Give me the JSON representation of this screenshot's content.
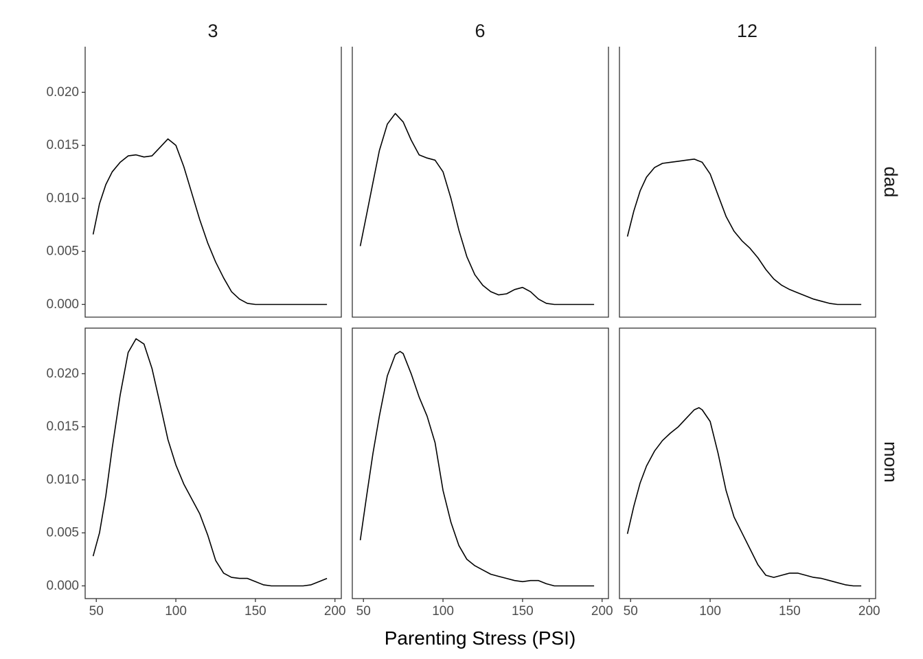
{
  "chart_data": {
    "type": "line",
    "xlabel": "Parenting Stress (PSI)",
    "ylabel": "",
    "xlim": [
      43,
      204
    ],
    "ylim": [
      -0.0012,
      0.0243
    ],
    "x_ticks": [
      50,
      100,
      150,
      200
    ],
    "y_ticks": [
      0.0,
      0.005,
      0.01,
      0.015,
      0.02
    ],
    "x_tick_labels": [
      "50",
      "100",
      "150",
      "200"
    ],
    "y_tick_labels": [
      "0.000",
      "0.005",
      "0.010",
      "0.015",
      "0.020"
    ],
    "columns": [
      "3",
      "6",
      "12"
    ],
    "rows": [
      "dad",
      "mom"
    ],
    "grid": false,
    "panels": [
      {
        "row": "dad",
        "col": "3",
        "points": [
          [
            48,
            0.0066
          ],
          [
            52,
            0.0095
          ],
          [
            56,
            0.0113
          ],
          [
            60,
            0.0125
          ],
          [
            65,
            0.0134
          ],
          [
            70,
            0.014
          ],
          [
            75,
            0.0141
          ],
          [
            80,
            0.0139
          ],
          [
            85,
            0.014
          ],
          [
            90,
            0.0148
          ],
          [
            95,
            0.0156
          ],
          [
            100,
            0.015
          ],
          [
            105,
            0.013
          ],
          [
            110,
            0.0105
          ],
          [
            115,
            0.008
          ],
          [
            120,
            0.0058
          ],
          [
            125,
            0.004
          ],
          [
            130,
            0.0025
          ],
          [
            135,
            0.0012
          ],
          [
            140,
            0.0005
          ],
          [
            145,
            0.0001
          ],
          [
            150,
            0.0
          ],
          [
            160,
            0.0
          ],
          [
            170,
            0.0
          ],
          [
            180,
            0.0
          ],
          [
            190,
            0.0
          ],
          [
            195,
            0.0
          ]
        ]
      },
      {
        "row": "dad",
        "col": "6",
        "points": [
          [
            48,
            0.0055
          ],
          [
            52,
            0.0085
          ],
          [
            56,
            0.0115
          ],
          [
            60,
            0.0145
          ],
          [
            65,
            0.017
          ],
          [
            70,
            0.018
          ],
          [
            75,
            0.0172
          ],
          [
            80,
            0.0155
          ],
          [
            85,
            0.0141
          ],
          [
            90,
            0.0138
          ],
          [
            95,
            0.0136
          ],
          [
            100,
            0.0125
          ],
          [
            105,
            0.01
          ],
          [
            110,
            0.007
          ],
          [
            115,
            0.0045
          ],
          [
            120,
            0.0028
          ],
          [
            125,
            0.0018
          ],
          [
            130,
            0.0012
          ],
          [
            135,
            0.0009
          ],
          [
            140,
            0.001
          ],
          [
            145,
            0.0014
          ],
          [
            150,
            0.0016
          ],
          [
            155,
            0.0012
          ],
          [
            160,
            0.0005
          ],
          [
            165,
            0.0001
          ],
          [
            170,
            0.0
          ],
          [
            180,
            0.0
          ],
          [
            195,
            0.0
          ]
        ]
      },
      {
        "row": "dad",
        "col": "12",
        "points": [
          [
            48,
            0.0064
          ],
          [
            52,
            0.0088
          ],
          [
            56,
            0.0107
          ],
          [
            60,
            0.012
          ],
          [
            65,
            0.0129
          ],
          [
            70,
            0.0133
          ],
          [
            75,
            0.0134
          ],
          [
            80,
            0.0135
          ],
          [
            85,
            0.0136
          ],
          [
            90,
            0.0137
          ],
          [
            95,
            0.0134
          ],
          [
            100,
            0.0123
          ],
          [
            105,
            0.0103
          ],
          [
            110,
            0.0083
          ],
          [
            115,
            0.0069
          ],
          [
            120,
            0.006
          ],
          [
            125,
            0.0053
          ],
          [
            130,
            0.0044
          ],
          [
            135,
            0.0033
          ],
          [
            140,
            0.0024
          ],
          [
            145,
            0.0018
          ],
          [
            150,
            0.0014
          ],
          [
            155,
            0.0011
          ],
          [
            160,
            0.0008
          ],
          [
            165,
            0.0005
          ],
          [
            170,
            0.0003
          ],
          [
            175,
            0.0001
          ],
          [
            180,
            0.0
          ],
          [
            185,
            0.0
          ],
          [
            195,
            0.0
          ]
        ]
      },
      {
        "row": "mom",
        "col": "3",
        "points": [
          [
            48,
            0.0028
          ],
          [
            52,
            0.005
          ],
          [
            56,
            0.0085
          ],
          [
            60,
            0.013
          ],
          [
            65,
            0.018
          ],
          [
            70,
            0.022
          ],
          [
            75,
            0.0233
          ],
          [
            80,
            0.0228
          ],
          [
            85,
            0.0205
          ],
          [
            90,
            0.0172
          ],
          [
            95,
            0.0138
          ],
          [
            100,
            0.0114
          ],
          [
            105,
            0.0096
          ],
          [
            110,
            0.0082
          ],
          [
            115,
            0.0068
          ],
          [
            120,
            0.0048
          ],
          [
            125,
            0.0024
          ],
          [
            130,
            0.0012
          ],
          [
            135,
            0.0008
          ],
          [
            140,
            0.0007
          ],
          [
            145,
            0.0007
          ],
          [
            150,
            0.0004
          ],
          [
            155,
            0.0001
          ],
          [
            160,
            0.0
          ],
          [
            170,
            0.0
          ],
          [
            180,
            0.0
          ],
          [
            185,
            0.0001
          ],
          [
            190,
            0.0004
          ],
          [
            195,
            0.0007
          ]
        ]
      },
      {
        "row": "mom",
        "col": "6",
        "points": [
          [
            48,
            0.0043
          ],
          [
            52,
            0.0085
          ],
          [
            56,
            0.0125
          ],
          [
            60,
            0.016
          ],
          [
            65,
            0.0198
          ],
          [
            70,
            0.0218
          ],
          [
            73,
            0.0221
          ],
          [
            75,
            0.0219
          ],
          [
            80,
            0.02
          ],
          [
            85,
            0.0178
          ],
          [
            90,
            0.016
          ],
          [
            95,
            0.0135
          ],
          [
            100,
            0.009
          ],
          [
            105,
            0.006
          ],
          [
            110,
            0.0038
          ],
          [
            115,
            0.0025
          ],
          [
            120,
            0.0019
          ],
          [
            125,
            0.0015
          ],
          [
            130,
            0.0011
          ],
          [
            135,
            0.0009
          ],
          [
            140,
            0.0007
          ],
          [
            145,
            0.0005
          ],
          [
            150,
            0.0004
          ],
          [
            155,
            0.0005
          ],
          [
            160,
            0.0005
          ],
          [
            165,
            0.0002
          ],
          [
            170,
            0.0
          ],
          [
            180,
            0.0
          ],
          [
            195,
            0.0
          ]
        ]
      },
      {
        "row": "mom",
        "col": "12",
        "points": [
          [
            48,
            0.0049
          ],
          [
            52,
            0.0075
          ],
          [
            56,
            0.0097
          ],
          [
            60,
            0.0113
          ],
          [
            65,
            0.0127
          ],
          [
            70,
            0.0137
          ],
          [
            75,
            0.0144
          ],
          [
            80,
            0.015
          ],
          [
            85,
            0.0158
          ],
          [
            90,
            0.0166
          ],
          [
            93,
            0.0168
          ],
          [
            95,
            0.0166
          ],
          [
            100,
            0.0155
          ],
          [
            105,
            0.0125
          ],
          [
            110,
            0.009
          ],
          [
            115,
            0.0065
          ],
          [
            120,
            0.005
          ],
          [
            125,
            0.0035
          ],
          [
            130,
            0.002
          ],
          [
            135,
            0.001
          ],
          [
            140,
            0.0008
          ],
          [
            145,
            0.001
          ],
          [
            150,
            0.0012
          ],
          [
            155,
            0.0012
          ],
          [
            160,
            0.001
          ],
          [
            165,
            0.0008
          ],
          [
            170,
            0.0007
          ],
          [
            175,
            0.0005
          ],
          [
            180,
            0.0003
          ],
          [
            185,
            0.0001
          ],
          [
            190,
            0.0
          ],
          [
            195,
            0.0
          ]
        ]
      }
    ]
  }
}
